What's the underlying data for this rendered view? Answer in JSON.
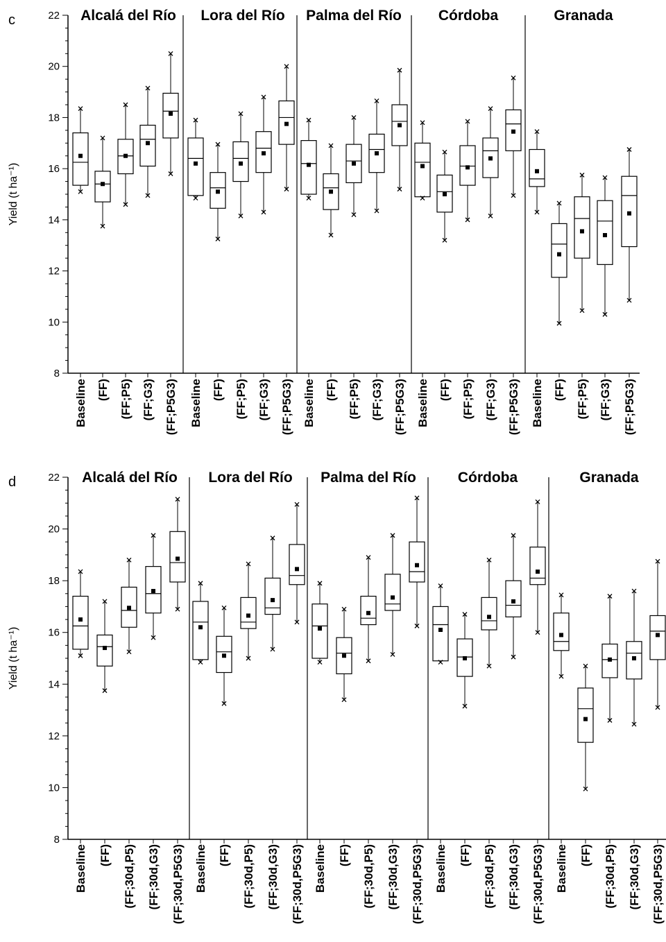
{
  "chart_data": [
    {
      "type": "box",
      "panel_label": "c",
      "ylabel": "Yield (t ha⁻¹)",
      "ylim": [
        8,
        22
      ],
      "yticks": [
        8,
        10,
        12,
        14,
        16,
        18,
        20,
        22
      ],
      "groups": [
        {
          "site": "Alcalá del Río",
          "categories": [
            "Baseline",
            "(FF)",
            "(FF;P5)",
            "(FF;G3)",
            "(FF;P5G3)"
          ],
          "boxes": [
            {
              "min": 15.1,
              "q1": 15.35,
              "median": 16.25,
              "q3": 17.4,
              "max": 18.35,
              "mean": 16.5
            },
            {
              "min": 13.75,
              "q1": 14.7,
              "median": 15.4,
              "q3": 15.9,
              "max": 17.2,
              "mean": 15.4
            },
            {
              "min": 14.6,
              "q1": 15.8,
              "median": 16.5,
              "q3": 17.15,
              "max": 18.5,
              "mean": 16.5
            },
            {
              "min": 14.95,
              "q1": 16.1,
              "median": 17.15,
              "q3": 17.7,
              "max": 19.15,
              "mean": 17.0
            },
            {
              "min": 15.8,
              "q1": 17.2,
              "median": 18.25,
              "q3": 18.95,
              "max": 20.5,
              "mean": 18.15
            }
          ]
        },
        {
          "site": "Lora del Río",
          "categories": [
            "Baseline",
            "(FF)",
            "(FF;P5)",
            "(FF;G3)",
            "(FF;P5G3)"
          ],
          "boxes": [
            {
              "min": 14.85,
              "q1": 14.95,
              "median": 16.4,
              "q3": 17.2,
              "max": 17.9,
              "mean": 16.2
            },
            {
              "min": 13.25,
              "q1": 14.45,
              "median": 15.25,
              "q3": 15.85,
              "max": 16.95,
              "mean": 15.1
            },
            {
              "min": 14.15,
              "q1": 15.5,
              "median": 16.4,
              "q3": 17.05,
              "max": 18.15,
              "mean": 16.2
            },
            {
              "min": 14.3,
              "q1": 15.85,
              "median": 16.8,
              "q3": 17.45,
              "max": 18.8,
              "mean": 16.6
            },
            {
              "min": 15.2,
              "q1": 16.95,
              "median": 18.0,
              "q3": 18.65,
              "max": 20.0,
              "mean": 17.75
            }
          ]
        },
        {
          "site": "Palma del Río",
          "categories": [
            "Baseline",
            "(FF)",
            "(FF;P5)",
            "(FF;G3)",
            "(FF;P5G3)"
          ],
          "boxes": [
            {
              "min": 14.85,
              "q1": 15.0,
              "median": 16.2,
              "q3": 17.1,
              "max": 17.9,
              "mean": 16.15
            },
            {
              "min": 13.4,
              "q1": 14.4,
              "median": 15.25,
              "q3": 15.8,
              "max": 16.9,
              "mean": 15.1
            },
            {
              "min": 14.2,
              "q1": 15.45,
              "median": 16.3,
              "q3": 16.95,
              "max": 18.0,
              "mean": 16.2
            },
            {
              "min": 14.35,
              "q1": 15.85,
              "median": 16.75,
              "q3": 17.35,
              "max": 18.65,
              "mean": 16.6
            },
            {
              "min": 15.2,
              "q1": 16.9,
              "median": 17.85,
              "q3": 18.5,
              "max": 19.85,
              "mean": 17.7
            }
          ]
        },
        {
          "site": "Córdoba",
          "categories": [
            "Baseline",
            "(FF)",
            "(FF;P5)",
            "(FF;G3)",
            "(FF;P5G3)"
          ],
          "boxes": [
            {
              "min": 14.85,
              "q1": 14.9,
              "median": 16.25,
              "q3": 17.0,
              "max": 17.8,
              "mean": 16.1
            },
            {
              "min": 13.2,
              "q1": 14.3,
              "median": 15.1,
              "q3": 15.75,
              "max": 16.65,
              "mean": 15.0
            },
            {
              "min": 14.0,
              "q1": 15.35,
              "median": 16.1,
              "q3": 16.9,
              "max": 17.85,
              "mean": 16.05
            },
            {
              "min": 14.15,
              "q1": 15.65,
              "median": 16.7,
              "q3": 17.2,
              "max": 18.35,
              "mean": 16.4
            },
            {
              "min": 14.95,
              "q1": 16.7,
              "median": 17.75,
              "q3": 18.3,
              "max": 19.55,
              "mean": 17.45
            }
          ]
        },
        {
          "site": "Granada",
          "categories": [
            "Baseline",
            "(FF)",
            "(FF;P5)",
            "(FF;G3)",
            "(FF;P5G3)"
          ],
          "boxes": [
            {
              "min": 14.3,
              "q1": 15.3,
              "median": 15.6,
              "q3": 16.75,
              "max": 17.45,
              "mean": 15.9
            },
            {
              "min": 9.95,
              "q1": 11.75,
              "median": 13.05,
              "q3": 13.85,
              "max": 14.65,
              "mean": 12.65
            },
            {
              "min": 10.45,
              "q1": 12.5,
              "median": 14.05,
              "q3": 14.9,
              "max": 15.75,
              "mean": 13.55
            },
            {
              "min": 10.3,
              "q1": 12.25,
              "median": 13.95,
              "q3": 14.75,
              "max": 15.65,
              "mean": 13.4
            },
            {
              "min": 10.85,
              "q1": 12.95,
              "median": 14.95,
              "q3": 15.7,
              "max": 16.75,
              "mean": 14.25
            }
          ]
        }
      ]
    },
    {
      "type": "box",
      "panel_label": "d",
      "ylabel": "Yield (t ha⁻¹)",
      "ylim": [
        8,
        22
      ],
      "yticks": [
        8,
        10,
        12,
        14,
        16,
        18,
        20,
        22
      ],
      "groups": [
        {
          "site": "Alcalá del Río",
          "categories": [
            "Baseline",
            "(FF)",
            "(FF;30d,P5)",
            "(FF;30d,G3)",
            "(FF;30d,P5G3)"
          ],
          "boxes": [
            {
              "min": 15.1,
              "q1": 15.35,
              "median": 16.25,
              "q3": 17.4,
              "max": 18.35,
              "mean": 16.5
            },
            {
              "min": 13.75,
              "q1": 14.7,
              "median": 15.45,
              "q3": 15.9,
              "max": 17.2,
              "mean": 15.4
            },
            {
              "min": 15.25,
              "q1": 16.2,
              "median": 16.85,
              "q3": 17.75,
              "max": 18.8,
              "mean": 16.95
            },
            {
              "min": 15.8,
              "q1": 16.75,
              "median": 17.5,
              "q3": 18.55,
              "max": 19.75,
              "mean": 17.6
            },
            {
              "min": 16.9,
              "q1": 17.95,
              "median": 18.7,
              "q3": 19.9,
              "max": 21.15,
              "mean": 18.85
            }
          ]
        },
        {
          "site": "Lora del Río",
          "categories": [
            "Baseline",
            "(FF)",
            "(FF;30d,P5)",
            "(FF;30d,G3)",
            "(FF;30d,P5G3)"
          ],
          "boxes": [
            {
              "min": 14.85,
              "q1": 14.95,
              "median": 16.4,
              "q3": 17.2,
              "max": 17.9,
              "mean": 16.2
            },
            {
              "min": 13.25,
              "q1": 14.45,
              "median": 15.25,
              "q3": 15.85,
              "max": 16.95,
              "mean": 15.1
            },
            {
              "min": 15.0,
              "q1": 16.15,
              "median": 16.4,
              "q3": 17.35,
              "max": 18.65,
              "mean": 16.65
            },
            {
              "min": 15.35,
              "q1": 16.7,
              "median": 16.95,
              "q3": 18.1,
              "max": 19.65,
              "mean": 17.25
            },
            {
              "min": 16.4,
              "q1": 17.85,
              "median": 18.2,
              "q3": 19.4,
              "max": 20.95,
              "mean": 18.45
            }
          ]
        },
        {
          "site": "Palma del Río",
          "categories": [
            "Baseline",
            "(FF)",
            "(FF;30d,P5)",
            "(FF;30d,G3)",
            "(FF;30d,P5G3)"
          ],
          "boxes": [
            {
              "min": 14.85,
              "q1": 15.0,
              "median": 16.25,
              "q3": 17.1,
              "max": 17.9,
              "mean": 16.15
            },
            {
              "min": 13.4,
              "q1": 14.4,
              "median": 15.2,
              "q3": 15.8,
              "max": 16.9,
              "mean": 15.1
            },
            {
              "min": 14.9,
              "q1": 16.3,
              "median": 16.55,
              "q3": 17.4,
              "max": 18.9,
              "mean": 16.75
            },
            {
              "min": 15.15,
              "q1": 16.85,
              "median": 17.1,
              "q3": 18.25,
              "max": 19.75,
              "mean": 17.35
            },
            {
              "min": 16.25,
              "q1": 17.95,
              "median": 18.35,
              "q3": 19.5,
              "max": 21.2,
              "mean": 18.6
            }
          ]
        },
        {
          "site": "Córdoba",
          "categories": [
            "Baseline",
            "(FF)",
            "(FF;30d,P5)",
            "(FF;30d,G3)",
            "(FF;30d,P5G3)"
          ],
          "boxes": [
            {
              "min": 14.85,
              "q1": 14.9,
              "median": 16.3,
              "q3": 17.0,
              "max": 17.8,
              "mean": 16.1
            },
            {
              "min": 13.15,
              "q1": 14.3,
              "median": 15.05,
              "q3": 15.75,
              "max": 16.7,
              "mean": 15.0
            },
            {
              "min": 14.7,
              "q1": 16.1,
              "median": 16.45,
              "q3": 17.35,
              "max": 18.8,
              "mean": 16.6
            },
            {
              "min": 15.05,
              "q1": 16.6,
              "median": 17.05,
              "q3": 18.0,
              "max": 19.75,
              "mean": 17.2
            },
            {
              "min": 16.0,
              "q1": 17.85,
              "median": 18.1,
              "q3": 19.3,
              "max": 21.05,
              "mean": 18.35
            }
          ]
        },
        {
          "site": "Granada",
          "categories": [
            "Baseline",
            "(FF)",
            "(FF;30d,P5)",
            "(FF;30d,G3)",
            "(FF;30d,P5G3)"
          ],
          "boxes": [
            {
              "min": 14.3,
              "q1": 15.3,
              "median": 15.65,
              "q3": 16.75,
              "max": 17.45,
              "mean": 15.9
            },
            {
              "min": 9.95,
              "q1": 11.75,
              "median": 13.05,
              "q3": 13.85,
              "max": 14.7,
              "mean": 12.65
            },
            {
              "min": 12.6,
              "q1": 14.25,
              "median": 14.95,
              "q3": 15.55,
              "max": 17.4,
              "mean": 14.95
            },
            {
              "min": 12.45,
              "q1": 14.2,
              "median": 15.2,
              "q3": 15.65,
              "max": 17.6,
              "mean": 15.0
            },
            {
              "min": 13.1,
              "q1": 14.95,
              "median": 16.05,
              "q3": 16.65,
              "max": 18.75,
              "mean": 15.9
            }
          ]
        }
      ]
    }
  ]
}
